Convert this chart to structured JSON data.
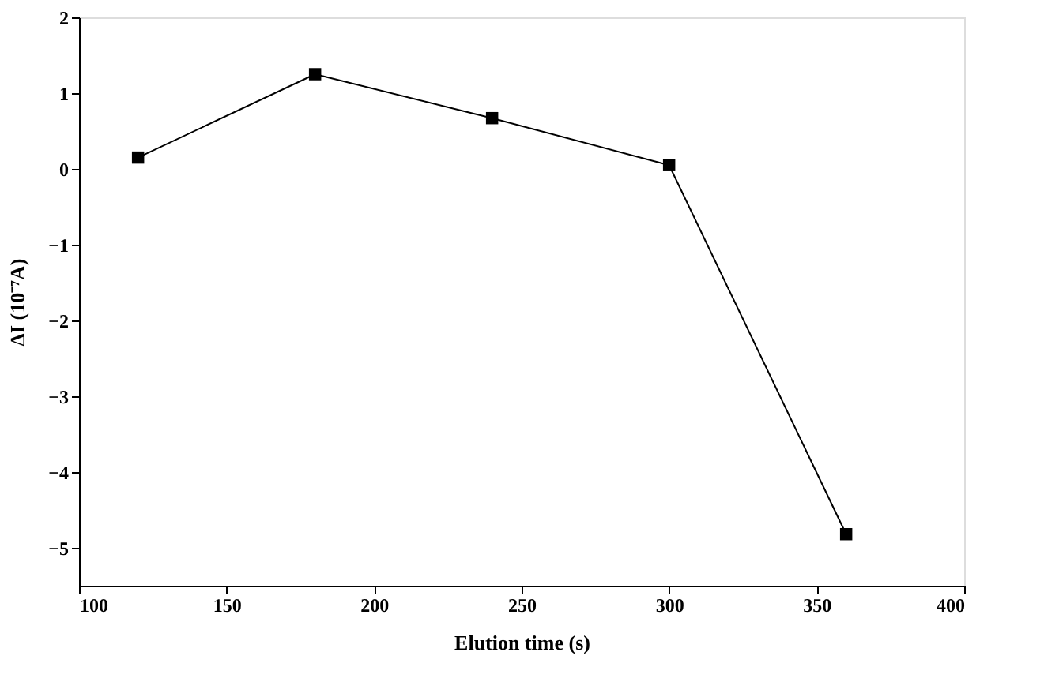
{
  "chart_data": {
    "type": "line",
    "xlabel": "Elution time (s)",
    "ylabel": "ΔI (10⁻⁷A)",
    "x": [
      120,
      180,
      240,
      300,
      360
    ],
    "series": [
      {
        "color": "#000000",
        "values": [
          0.15,
          1.25,
          0.67,
          0.05,
          -4.82
        ]
      }
    ],
    "xlim": [
      100,
      400
    ],
    "xticks": [
      100,
      150,
      200,
      250,
      300,
      350,
      400
    ],
    "ylim": [
      -5.5,
      2
    ],
    "yticks": [
      -5,
      -4,
      -3,
      -2,
      -1,
      0,
      1,
      2
    ],
    "marker": "square",
    "line_style": "solid",
    "grid": false,
    "legend": false
  }
}
